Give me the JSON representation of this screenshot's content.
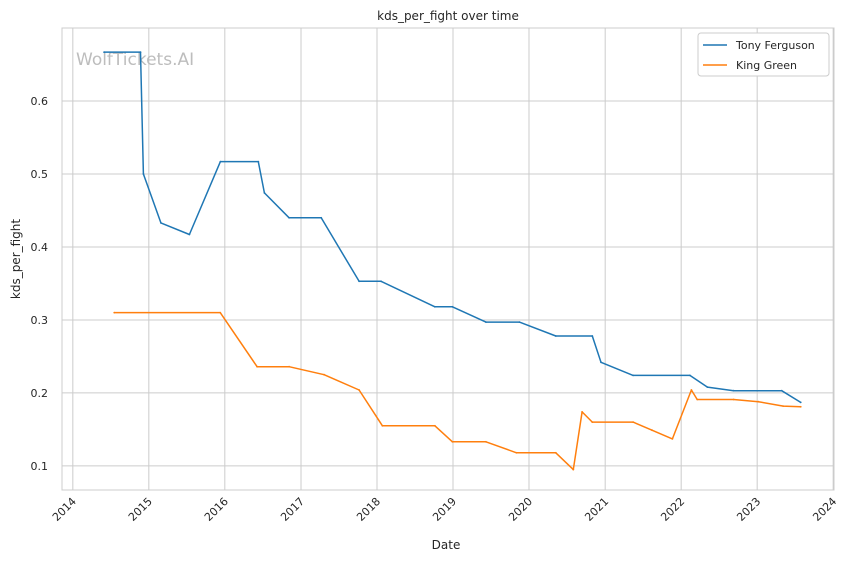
{
  "chart_data": {
    "type": "line",
    "title": "kds_per_fight over time",
    "xlabel": "Date",
    "ylabel": "kds_per_fight",
    "watermark": "WolfTickets.AI",
    "x_ticks": [
      "2014",
      "2015",
      "2016",
      "2017",
      "2018",
      "2019",
      "2020",
      "2021",
      "2022",
      "2023",
      "2024"
    ],
    "y_ticks": [
      "0.1",
      "0.2",
      "0.3",
      "0.4",
      "0.5",
      "0.6"
    ],
    "xlim": [
      "2013-11-10",
      "2024-01-05"
    ],
    "ylim": [
      0.067,
      0.7
    ],
    "grid": true,
    "legend_position": "top-right",
    "series": [
      {
        "name": "Tony Ferguson",
        "color": "#1f77b4",
        "points": [
          [
            "2014-05-31",
            0.667
          ],
          [
            "2014-11-22",
            0.667
          ],
          [
            "2014-12-06",
            0.5
          ],
          [
            "2015-02-28",
            0.433
          ],
          [
            "2015-07-15",
            0.417
          ],
          [
            "2015-12-11",
            0.517
          ],
          [
            "2016-06-10",
            0.517
          ],
          [
            "2016-07-09",
            0.474
          ],
          [
            "2016-11-05",
            0.44
          ],
          [
            "2017-04-08",
            0.44
          ],
          [
            "2017-10-07",
            0.353
          ],
          [
            "2018-01-20",
            0.353
          ],
          [
            "2018-10-06",
            0.318
          ],
          [
            "2018-12-29",
            0.318
          ],
          [
            "2019-06-08",
            0.297
          ],
          [
            "2019-11-16",
            0.297
          ],
          [
            "2020-05-09",
            0.278
          ],
          [
            "2020-10-31",
            0.278
          ],
          [
            "2020-12-12",
            0.242
          ],
          [
            "2021-05-15",
            0.224
          ],
          [
            "2022-02-12",
            0.224
          ],
          [
            "2022-05-07",
            0.208
          ],
          [
            "2022-09-10",
            0.203
          ],
          [
            "2023-04-29",
            0.203
          ],
          [
            "2023-07-29",
            0.187
          ]
        ]
      },
      {
        "name": "King Green",
        "color": "#ff7f0e",
        "points": [
          [
            "2014-07-19",
            0.31
          ],
          [
            "2015-12-10",
            0.31
          ],
          [
            "2016-06-04",
            0.236
          ],
          [
            "2016-11-05",
            0.236
          ],
          [
            "2017-04-22",
            0.225
          ],
          [
            "2017-10-07",
            0.204
          ],
          [
            "2018-01-27",
            0.155
          ],
          [
            "2018-10-06",
            0.155
          ],
          [
            "2018-12-29",
            0.133
          ],
          [
            "2019-06-08",
            0.133
          ],
          [
            "2019-11-02",
            0.118
          ],
          [
            "2020-05-09",
            0.118
          ],
          [
            "2020-08-01",
            0.095
          ],
          [
            "2020-09-12",
            0.174
          ],
          [
            "2020-10-31",
            0.16
          ],
          [
            "2021-05-15",
            0.16
          ],
          [
            "2021-08-14",
            0.149
          ],
          [
            "2021-11-20",
            0.137
          ],
          [
            "2022-02-19",
            0.204
          ],
          [
            "2022-03-19",
            0.191
          ],
          [
            "2022-09-10",
            0.191
          ],
          [
            "2023-01-07",
            0.188
          ],
          [
            "2023-05-06",
            0.182
          ],
          [
            "2023-07-29",
            0.181
          ]
        ]
      }
    ]
  }
}
